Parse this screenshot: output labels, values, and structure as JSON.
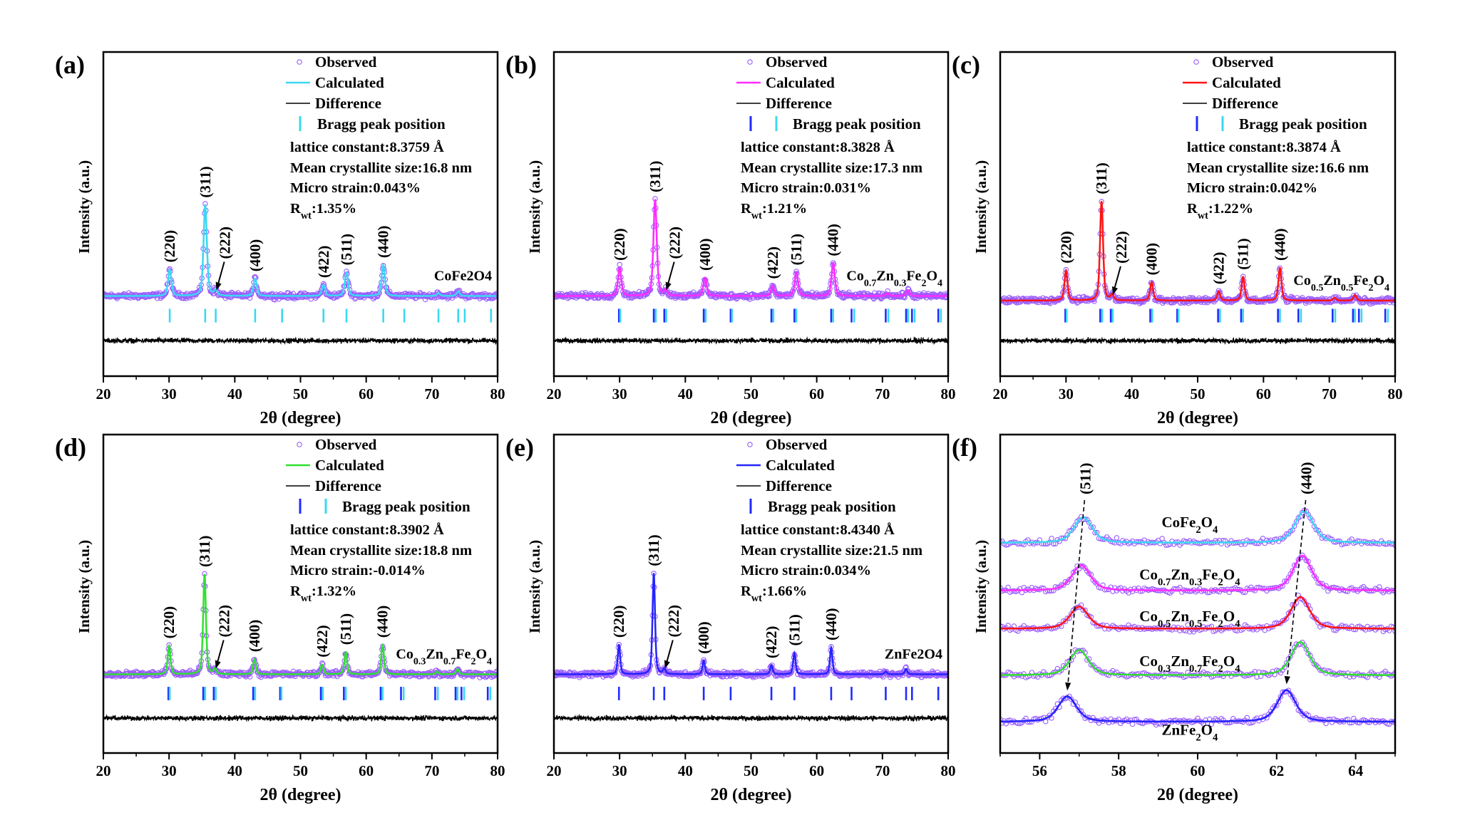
{
  "figure": {
    "colors": {
      "observed": "#9a5cff",
      "difference": "#000000",
      "bragg_blue": "#1f2bff",
      "bragg_cyan": "#3ad8f2"
    }
  },
  "chart_data": [
    {
      "panel_label": "(a)",
      "type": "line",
      "xlabel": "2θ (degree)",
      "ylabel": "Intensity (a.u.)",
      "xlim": [
        20,
        80
      ],
      "xticks": [
        20,
        30,
        40,
        50,
        60,
        70,
        80
      ],
      "minor_step": 5,
      "ylim": [
        -88,
        268
      ],
      "grid": false,
      "legend": "top-right",
      "legend_entries": {
        "observed": "Observed",
        "calculated": "Calculated",
        "difference": "Difference",
        "bragg": "Bragg peak position"
      },
      "calc_color": "#3ad8f2",
      "bragg_colors": [
        "#3ad8f2"
      ],
      "stats": {
        "lattice": "lattice constant:8.3759 Å",
        "size": "Mean crystallite size:16.8 nm",
        "strain": "Micro strain:0.043%",
        "rwt_main": "R",
        "rwt_sub": "wt",
        "rwt_value": ":1.35%"
      },
      "sample": "CoFe2O4",
      "fwhm": 0.6,
      "baseline": 0,
      "difference_offset": -49,
      "peaks": [
        {
          "hkl": "(220)",
          "x": 30.1,
          "y": 29
        },
        {
          "hkl": "(311)",
          "x": 35.5,
          "y": 100
        },
        {
          "hkl": "(222)",
          "x": 37.1,
          "y": 6
        },
        {
          "hkl": "(400)",
          "x": 43.1,
          "y": 19
        },
        {
          "hkl": "(422)",
          "x": 53.5,
          "y": 12
        },
        {
          "hkl": "(511)",
          "x": 57.0,
          "y": 26
        },
        {
          "hkl": "(440)",
          "x": 62.6,
          "y": 34
        }
      ],
      "minor_peaks": [
        {
          "x": 71.0,
          "y": 3
        },
        {
          "x": 74.0,
          "y": 5
        }
      ],
      "bragg_positions": [
        [
          30.1,
          35.5,
          37.1,
          43.1,
          47.2,
          53.5,
          57.0,
          62.6,
          65.8,
          71.0,
          74.0,
          75.0,
          79.0
        ]
      ]
    },
    {
      "panel_label": "(b)",
      "type": "line",
      "xlabel": "2θ (degree)",
      "ylabel": "Intensity (a.u.)",
      "xlim": [
        20,
        80
      ],
      "xticks": [
        20,
        30,
        40,
        50,
        60,
        70,
        80
      ],
      "minor_step": 5,
      "ylim": [
        -88,
        268
      ],
      "grid": false,
      "legend": "top-right",
      "legend_entries": {
        "observed": "Observed",
        "calculated": "Calculated",
        "difference": "Difference",
        "bragg": "Bragg peak position"
      },
      "calc_color": "#ff2cff",
      "bragg_colors": [
        "#1f2bff",
        "#3ad8f2"
      ],
      "stats": {
        "lattice": "lattice constant:8.3828 Å",
        "size": "Mean crystallite size:17.3 nm",
        "strain": "Micro strain:0.031%",
        "rwt_main": "R",
        "rwt_sub": "wt",
        "rwt_value": ":1.21%"
      },
      "sample": "Co0.7Zn0.3Fe2O4",
      "fwhm": 0.6,
      "baseline": 0,
      "difference_offset": -49,
      "peaks": [
        {
          "hkl": "(220)",
          "x": 30.0,
          "y": 31
        },
        {
          "hkl": "(311)",
          "x": 35.4,
          "y": 106
        },
        {
          "hkl": "(222)",
          "x": 37.0,
          "y": 6
        },
        {
          "hkl": "(400)",
          "x": 43.0,
          "y": 20
        },
        {
          "hkl": "(422)",
          "x": 53.3,
          "y": 11
        },
        {
          "hkl": "(511)",
          "x": 56.9,
          "y": 26
        },
        {
          "hkl": "(440)",
          "x": 62.5,
          "y": 36
        }
      ],
      "minor_peaks": [
        {
          "x": 70.8,
          "y": 3
        },
        {
          "x": 73.9,
          "y": 6
        }
      ],
      "bragg_positions": [
        [
          29.9,
          35.2,
          36.8,
          42.8,
          46.9,
          53.1,
          56.6,
          62.2,
          65.3,
          70.5,
          73.6,
          74.5,
          78.5
        ],
        [
          30.1,
          35.5,
          37.1,
          43.1,
          47.1,
          53.4,
          56.9,
          62.5,
          65.7,
          70.9,
          73.9,
          74.9,
          78.9
        ]
      ]
    },
    {
      "panel_label": "(c)",
      "type": "line",
      "xlabel": "2θ (degree)",
      "ylabel": "Intensity (a.u.)",
      "xlim": [
        20,
        80
      ],
      "xticks": [
        20,
        30,
        40,
        50,
        60,
        70,
        80
      ],
      "minor_step": 5,
      "ylim": [
        -88,
        268
      ],
      "grid": false,
      "legend": "top-right",
      "legend_entries": {
        "observed": "Observed",
        "calculated": "Calculated",
        "difference": "Difference",
        "bragg": "Bragg peak position"
      },
      "calc_color": "#ff1414",
      "bragg_colors": [
        "#1f2bff",
        "#3ad8f2"
      ],
      "stats": {
        "lattice": "lattice constant:8.3874 Å",
        "size": "Mean crystallite size:16.6 nm",
        "strain": "Micro strain:0.042%",
        "rwt_main": "R",
        "rwt_sub": "wt",
        "rwt_value": ":1.22%"
      },
      "sample": "Co0.5Zn0.5Fe2O4",
      "fwhm": 0.55,
      "baseline": -5,
      "difference_offset": -49,
      "peaks": [
        {
          "hkl": "(220)",
          "x": 30.0,
          "y": 33
        },
        {
          "hkl": "(311)",
          "x": 35.4,
          "y": 109
        },
        {
          "hkl": "(222)",
          "x": 37.0,
          "y": 6
        },
        {
          "hkl": "(400)",
          "x": 43.0,
          "y": 20
        },
        {
          "hkl": "(422)",
          "x": 53.2,
          "y": 10
        },
        {
          "hkl": "(511)",
          "x": 56.9,
          "y": 26
        },
        {
          "hkl": "(440)",
          "x": 62.5,
          "y": 36
        }
      ],
      "minor_peaks": [
        {
          "x": 70.8,
          "y": 3
        },
        {
          "x": 73.9,
          "y": 6
        }
      ],
      "bragg_positions": [
        [
          29.9,
          35.2,
          36.8,
          42.8,
          46.9,
          53.1,
          56.6,
          62.2,
          65.3,
          70.5,
          73.6,
          74.5,
          78.5
        ],
        [
          30.1,
          35.5,
          37.1,
          43.1,
          47.1,
          53.4,
          56.9,
          62.5,
          65.7,
          70.9,
          73.9,
          74.9,
          78.9
        ]
      ]
    },
    {
      "panel_label": "(d)",
      "type": "line",
      "xlabel": "2θ (degree)",
      "ylabel": "Intensity (a.u.)",
      "xlim": [
        20,
        80
      ],
      "xticks": [
        20,
        30,
        40,
        50,
        60,
        70,
        80
      ],
      "minor_step": 5,
      "ylim": [
        -88,
        268
      ],
      "grid": false,
      "legend": "top-right",
      "legend_entries": {
        "observed": "Observed",
        "calculated": "Calculated",
        "difference": "Difference",
        "bragg": "Bragg peak position"
      },
      "calc_color": "#2fe02f",
      "bragg_colors": [
        "#1f2bff",
        "#3ad8f2"
      ],
      "stats": {
        "lattice": "lattice constant:8.3902 Å",
        "size": "Mean crystallite size:18.8 nm",
        "strain": "Micro strain:-0.014%",
        "rwt_main": "R",
        "rwt_sub": "wt",
        "rwt_value": ":1.32%"
      },
      "sample": "Co0.3Zn0.7Fe2O4",
      "fwhm": 0.5,
      "baseline": 0,
      "difference_offset": -49,
      "peaks": [
        {
          "hkl": "(220)",
          "x": 30.0,
          "y": 32
        },
        {
          "hkl": "(311)",
          "x": 35.4,
          "y": 112
        },
        {
          "hkl": "(222)",
          "x": 37.0,
          "y": 6
        },
        {
          "hkl": "(400)",
          "x": 43.0,
          "y": 17
        },
        {
          "hkl": "(422)",
          "x": 53.3,
          "y": 11
        },
        {
          "hkl": "(511)",
          "x": 56.9,
          "y": 25
        },
        {
          "hkl": "(440)",
          "x": 62.5,
          "y": 33
        }
      ],
      "minor_peaks": [
        {
          "x": 70.8,
          "y": 3
        },
        {
          "x": 73.9,
          "y": 6
        }
      ],
      "bragg_positions": [
        [
          29.9,
          35.2,
          36.8,
          42.8,
          46.9,
          53.1,
          56.6,
          62.2,
          65.3,
          70.5,
          73.6,
          74.5,
          78.5
        ],
        [
          30.1,
          35.5,
          37.1,
          43.1,
          47.1,
          53.4,
          56.9,
          62.5,
          65.7,
          70.9,
          73.9,
          74.9,
          78.9
        ]
      ]
    },
    {
      "panel_label": "(e)",
      "type": "line",
      "xlabel": "2θ (degree)",
      "ylabel": "Intensity (a.u.)",
      "xlim": [
        20,
        80
      ],
      "xticks": [
        20,
        30,
        40,
        50,
        60,
        70,
        80
      ],
      "minor_step": 5,
      "ylim": [
        -88,
        268
      ],
      "grid": false,
      "legend": "top-right",
      "legend_entries": {
        "observed": "Observed",
        "calculated": "Calculated",
        "difference": "Difference",
        "bragg": "Bragg peak position"
      },
      "calc_color": "#2424ff",
      "bragg_colors": [
        "#1f2bff"
      ],
      "stats": {
        "lattice": "lattice constant:8.4340 Å",
        "size": "Mean crystallite size:21.5 nm",
        "strain": "Micro strain:0.034%",
        "rwt_main": "R",
        "rwt_sub": "wt",
        "rwt_value": ":1.66%"
      },
      "sample": "ZnFe2O4",
      "fwhm": 0.45,
      "baseline": 0,
      "difference_offset": -49,
      "peaks": [
        {
          "hkl": "(220)",
          "x": 29.9,
          "y": 33
        },
        {
          "hkl": "(311)",
          "x": 35.2,
          "y": 113
        },
        {
          "hkl": "(222)",
          "x": 36.8,
          "y": 6
        },
        {
          "hkl": "(400)",
          "x": 42.8,
          "y": 15
        },
        {
          "hkl": "(422)",
          "x": 53.1,
          "y": 10
        },
        {
          "hkl": "(511)",
          "x": 56.6,
          "y": 24
        },
        {
          "hkl": "(440)",
          "x": 62.2,
          "y": 30
        }
      ],
      "minor_peaks": [
        {
          "x": 70.5,
          "y": 3
        },
        {
          "x": 73.6,
          "y": 6
        }
      ],
      "bragg_positions": [
        [
          29.9,
          35.2,
          36.8,
          42.8,
          46.9,
          53.1,
          56.6,
          62.2,
          65.3,
          70.5,
          73.6,
          74.5,
          78.5
        ]
      ]
    },
    {
      "panel_label": "(f)",
      "type": "line",
      "xlabel": "2θ (degree)",
      "ylabel": "Intensity (a.u.)",
      "xlim": [
        55,
        65
      ],
      "xticks": [
        56,
        58,
        60,
        62,
        64
      ],
      "minor_step": 1,
      "ylim": [
        0,
        100
      ],
      "grid": false,
      "fwhm": 0.55,
      "peak_labels": [
        "(511)",
        "(440)"
      ],
      "series": [
        {
          "name": "CoFe2O4",
          "color": "#3ad8f2",
          "baseline": 66,
          "peaks": [
            {
              "x": 57.1,
              "y": 8
            },
            {
              "x": 62.7,
              "y": 10
            }
          ]
        },
        {
          "name": "Co0.7Zn0.3Fe2O4",
          "color": "#ff2cff",
          "baseline": 51,
          "peaks": [
            {
              "x": 57.05,
              "y": 8
            },
            {
              "x": 62.65,
              "y": 11
            }
          ]
        },
        {
          "name": "Co0.5Zn0.5Fe2O4",
          "color": "#ff1414",
          "baseline": 39,
          "peaks": [
            {
              "x": 57.0,
              "y": 7
            },
            {
              "x": 62.6,
              "y": 10
            }
          ]
        },
        {
          "name": "Co0.3Zn0.7Fe2O4",
          "color": "#2fe02f",
          "baseline": 24.4,
          "peaks": [
            {
              "x": 57.0,
              "y": 8
            },
            {
              "x": 62.6,
              "y": 10.5
            }
          ]
        },
        {
          "name": "ZnFe2O4",
          "color": "#2424ff",
          "baseline": 9.8,
          "peaks": [
            {
              "x": 56.7,
              "y": 8
            },
            {
              "x": 62.25,
              "y": 10
            }
          ]
        }
      ]
    }
  ]
}
